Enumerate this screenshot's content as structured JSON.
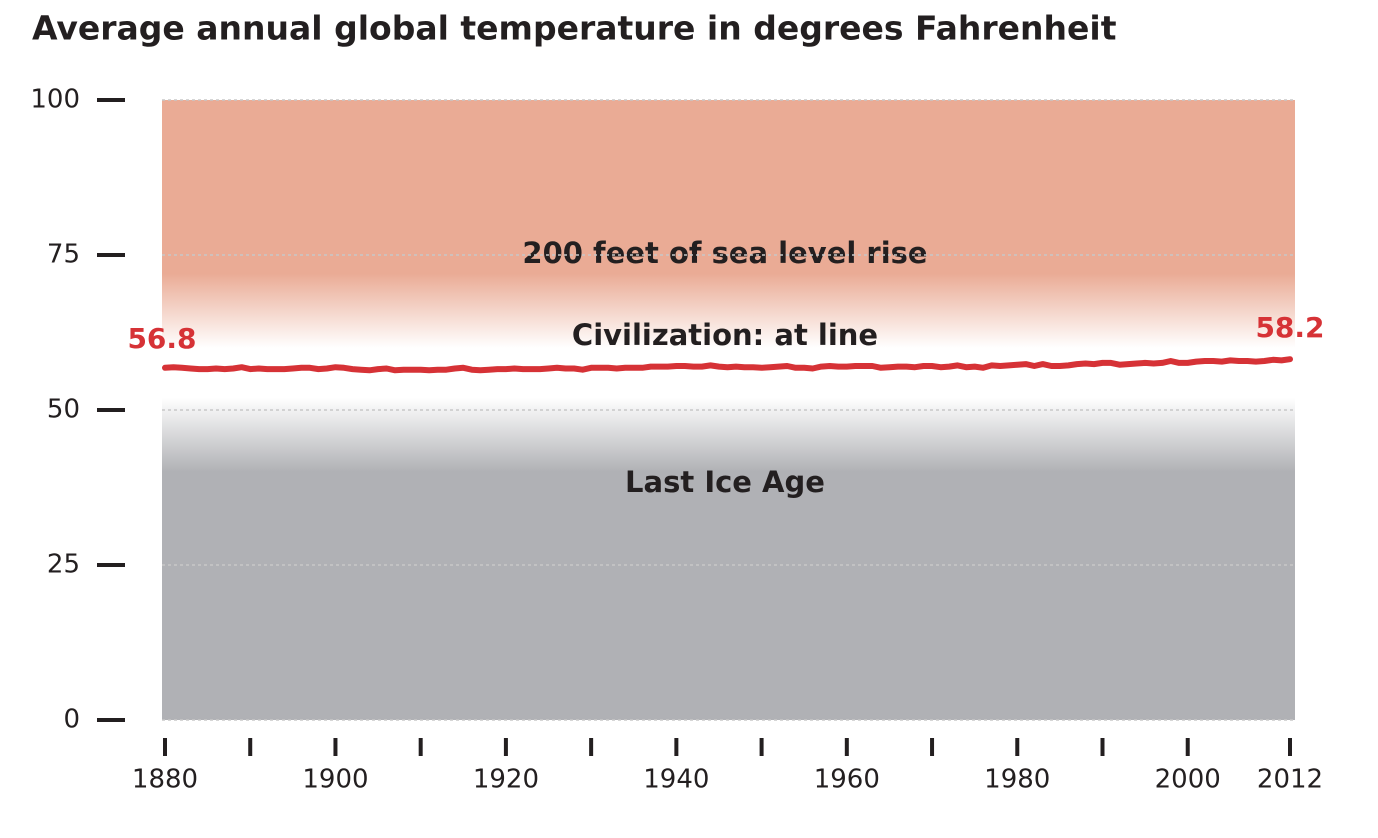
{
  "chart_data": {
    "type": "line",
    "title": "Average annual global temperature in degrees Fahrenheit",
    "annotations": [
      "200 feet of sea level rise",
      "Civilization: at line",
      "Last Ice Age"
    ],
    "x": [
      1880,
      1881,
      1882,
      1883,
      1884,
      1885,
      1886,
      1887,
      1888,
      1889,
      1890,
      1891,
      1892,
      1893,
      1894,
      1895,
      1896,
      1897,
      1898,
      1899,
      1900,
      1901,
      1902,
      1903,
      1904,
      1905,
      1906,
      1907,
      1908,
      1909,
      1910,
      1911,
      1912,
      1913,
      1914,
      1915,
      1916,
      1917,
      1918,
      1919,
      1920,
      1921,
      1922,
      1923,
      1924,
      1925,
      1926,
      1927,
      1928,
      1929,
      1930,
      1931,
      1932,
      1933,
      1934,
      1935,
      1936,
      1937,
      1938,
      1939,
      1940,
      1941,
      1942,
      1943,
      1944,
      1945,
      1946,
      1947,
      1948,
      1949,
      1950,
      1951,
      1952,
      1953,
      1954,
      1955,
      1956,
      1957,
      1958,
      1959,
      1960,
      1961,
      1962,
      1963,
      1964,
      1965,
      1966,
      1967,
      1968,
      1969,
      1970,
      1971,
      1972,
      1973,
      1974,
      1975,
      1976,
      1977,
      1978,
      1979,
      1980,
      1981,
      1982,
      1983,
      1984,
      1985,
      1986,
      1987,
      1988,
      1989,
      1990,
      1991,
      1992,
      1993,
      1994,
      1995,
      1996,
      1997,
      1998,
      1999,
      2000,
      2001,
      2002,
      2003,
      2004,
      2005,
      2006,
      2007,
      2008,
      2009,
      2010,
      2011,
      2012
    ],
    "series": [
      {
        "color": "#d63236",
        "values": [
          56.8,
          56.9,
          56.8,
          56.7,
          56.6,
          56.6,
          56.7,
          56.6,
          56.7,
          56.9,
          56.6,
          56.7,
          56.6,
          56.6,
          56.6,
          56.7,
          56.8,
          56.8,
          56.6,
          56.7,
          56.9,
          56.8,
          56.6,
          56.5,
          56.4,
          56.6,
          56.7,
          56.4,
          56.5,
          56.5,
          56.5,
          56.4,
          56.5,
          56.5,
          56.7,
          56.8,
          56.5,
          56.4,
          56.5,
          56.6,
          56.6,
          56.7,
          56.6,
          56.6,
          56.6,
          56.7,
          56.8,
          56.7,
          56.7,
          56.5,
          56.8,
          56.8,
          56.8,
          56.7,
          56.8,
          56.8,
          56.8,
          57.0,
          57.0,
          57.0,
          57.1,
          57.1,
          57.0,
          57.0,
          57.2,
          57.0,
          56.9,
          57.0,
          56.9,
          56.9,
          56.8,
          56.9,
          57.0,
          57.1,
          56.8,
          56.8,
          56.7,
          57.0,
          57.1,
          57.0,
          57.0,
          57.1,
          57.1,
          57.1,
          56.8,
          56.9,
          57.0,
          57.0,
          56.9,
          57.1,
          57.1,
          56.9,
          57.0,
          57.2,
          56.9,
          57.0,
          56.8,
          57.2,
          57.1,
          57.2,
          57.3,
          57.4,
          57.1,
          57.4,
          57.1,
          57.1,
          57.2,
          57.4,
          57.5,
          57.4,
          57.6,
          57.6,
          57.3,
          57.4,
          57.5,
          57.6,
          57.5,
          57.6,
          57.9,
          57.6,
          57.6,
          57.8,
          57.9,
          57.9,
          57.8,
          58.0,
          57.9,
          57.9,
          57.8,
          57.9,
          58.1,
          58.0,
          58.2
        ]
      }
    ],
    "xlim": [
      1880,
      2012
    ],
    "xticks": [
      1880,
      1900,
      1920,
      1940,
      1960,
      1980,
      2000,
      2012
    ],
    "xminor_ticks": [
      1890,
      1910,
      1930,
      1950,
      1970,
      1990
    ],
    "ylim": [
      0,
      100
    ],
    "yticks": [
      0,
      25,
      50,
      75,
      100
    ],
    "grid": true
  }
}
